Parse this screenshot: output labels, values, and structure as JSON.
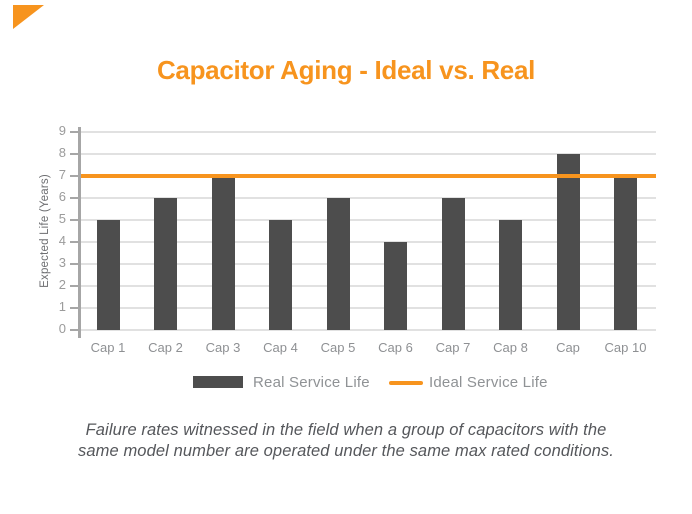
{
  "colors": {
    "accent_orange": "#F7941E",
    "bar_gray": "#4D4D4D",
    "grid_gray": "#E1E1E1",
    "axis_gray": "#A6A6A6",
    "tick_label_gray": "#9B9B9B",
    "category_label_gray": "#8E9093",
    "legend_label_gray": "#8F9295",
    "axis_title_gray": "#6D6E71",
    "caption_gray": "#55575B"
  },
  "decor": {
    "corner_triangle_color": "#F7941E"
  },
  "header": {
    "title": "Capacitor Aging - Ideal vs. Real"
  },
  "chart_data": {
    "type": "bar",
    "title": "Capacitor Aging - Ideal vs. Real",
    "xlabel": "",
    "ylabel": "Expected Life (Years)",
    "ylim": [
      0,
      9
    ],
    "yticks": [
      0,
      1,
      2,
      3,
      4,
      5,
      6,
      7,
      8,
      9
    ],
    "grid": true,
    "legend_position": "bottom",
    "categories": [
      "Cap 1",
      "Cap 2",
      "Cap 3",
      "Cap 4",
      "Cap 5",
      "Cap 6",
      "Cap 7",
      "Cap 8",
      "Cap",
      "Cap 10"
    ],
    "series": [
      {
        "name": "Real Service Life",
        "type": "bar",
        "color": "#4D4D4D",
        "values": [
          5,
          6,
          7,
          5,
          6,
          4,
          6,
          5,
          8,
          6.9
        ]
      },
      {
        "name": "Ideal Service Life",
        "type": "hline",
        "color": "#F7941E",
        "value": 7
      }
    ]
  },
  "legend": {
    "items": [
      {
        "label": "Real Service Life",
        "swatch": "bar"
      },
      {
        "label": "Ideal Service Life",
        "swatch": "line"
      }
    ]
  },
  "caption": {
    "line1": "Failure rates witnessed in the field when a group of capacitors with the",
    "line2": "same model number are operated under the same max rated conditions."
  }
}
